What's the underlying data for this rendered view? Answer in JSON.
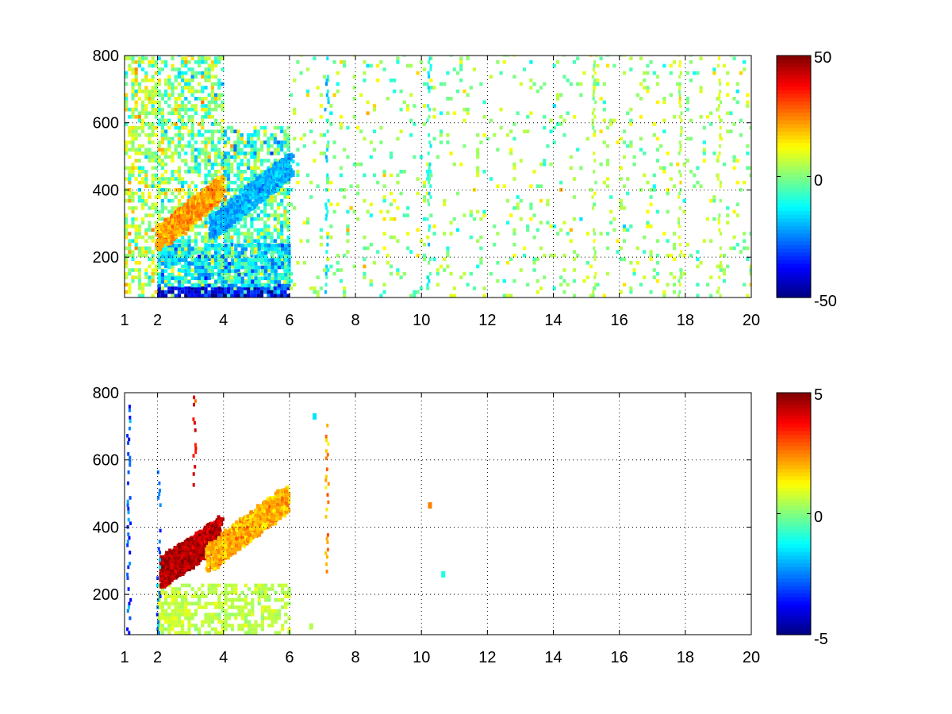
{
  "figure": {
    "background": "#ffffff",
    "colormap": "jet"
  },
  "chart_data": [
    {
      "type": "heatmap",
      "title": "",
      "xlabel": "",
      "ylabel": "",
      "xlim": [
        1,
        20
      ],
      "ylim": [
        80,
        800
      ],
      "grid": true,
      "xticks": [
        1,
        2,
        4,
        6,
        8,
        10,
        12,
        14,
        16,
        18,
        20
      ],
      "xtick_labels": [
        "1",
        "2",
        "4",
        "6",
        "8",
        "10",
        "12",
        "14",
        "16",
        "18",
        "20"
      ],
      "yticks": [
        200,
        400,
        600,
        800
      ],
      "ytick_labels": [
        "200",
        "400",
        "600",
        "800"
      ],
      "colorbar": {
        "range": [
          -50,
          50
        ],
        "tick_labels": [
          "50",
          "0",
          "-50"
        ],
        "tick_values": [
          50,
          0,
          -50
        ]
      },
      "data_description_regions": [
        {
          "x": [
            1.0,
            2.0
          ],
          "y": [
            80,
            800
          ],
          "fill": 0.55,
          "value": 5,
          "spread": 12
        },
        {
          "x": [
            2.0,
            4.0
          ],
          "y": [
            80,
            800
          ],
          "fill": 0.6,
          "value": 0,
          "spread": 14
        },
        {
          "x": [
            4.0,
            6.0
          ],
          "y": [
            80,
            580
          ],
          "fill": 0.65,
          "value": -5,
          "spread": 14
        },
        {
          "x": [
            2.0,
            4.0
          ],
          "y": [
            80,
            110
          ],
          "fill": 0.95,
          "value": -40,
          "spread": 10
        },
        {
          "x": [
            4.0,
            6.0
          ],
          "y": [
            80,
            110
          ],
          "fill": 0.9,
          "value": -35,
          "spread": 12
        },
        {
          "x": [
            2.0,
            6.0
          ],
          "y": [
            110,
            230
          ],
          "fill": 0.7,
          "value": -15,
          "spread": 12
        },
        {
          "x": [
            6.0,
            20.0
          ],
          "y": [
            80,
            800
          ],
          "fill": 0.09,
          "value": 2,
          "spread": 10
        }
      ],
      "data_description_ridges": [
        {
          "x_start": 2.0,
          "y_start": 250,
          "x_end": 3.9,
          "y_end": 400,
          "value": 22,
          "width": 35
        },
        {
          "x_start": 3.6,
          "y_start": 280,
          "x_end": 6.0,
          "y_end": 470,
          "value": -20,
          "width": 35
        }
      ],
      "data_description_columns": [
        {
          "x": 7.1,
          "value": -12
        },
        {
          "x": 10.2,
          "value": -10
        },
        {
          "x": 15.2,
          "value": 4
        },
        {
          "x": 17.8,
          "value": 6
        },
        {
          "x": 19.0,
          "value": 8
        }
      ]
    },
    {
      "type": "heatmap",
      "title": "",
      "xlabel": "",
      "ylabel": "",
      "xlim": [
        1,
        20
      ],
      "ylim": [
        80,
        800
      ],
      "grid": true,
      "xticks": [
        1,
        2,
        4,
        6,
        8,
        10,
        12,
        14,
        16,
        18,
        20
      ],
      "xtick_labels": [
        "1",
        "2",
        "4",
        "6",
        "8",
        "10",
        "12",
        "14",
        "16",
        "18",
        "20"
      ],
      "yticks": [
        200,
        400,
        600,
        800
      ],
      "ytick_labels": [
        "200",
        "400",
        "600",
        "800"
      ],
      "colorbar": {
        "range": [
          -5,
          5
        ],
        "tick_labels": [
          "5",
          "0",
          "-5"
        ],
        "tick_values": [
          5,
          0,
          -5
        ]
      },
      "data_description_regions": [
        {
          "x": [
            2.0,
            6.0
          ],
          "y": [
            80,
            230
          ],
          "fill": 0.55,
          "value": 0.6,
          "spread": 0.3
        },
        {
          "x": [
            2.0,
            3.0
          ],
          "y": [
            80,
            200
          ],
          "fill": 0.5,
          "value": 0.8,
          "spread": 0.3
        }
      ],
      "data_description_ridges": [
        {
          "x_start": 2.1,
          "y_start": 260,
          "x_end": 3.9,
          "y_end": 380,
          "value": 4.5,
          "width": 45
        },
        {
          "x_start": 3.5,
          "y_start": 300,
          "x_end": 5.9,
          "y_end": 480,
          "value": 2.0,
          "width": 40
        }
      ],
      "data_description_columns": [
        {
          "x": 1.1,
          "y": [
            80,
            760
          ],
          "value": -3
        },
        {
          "x": 2.0,
          "y": [
            80,
            560
          ],
          "value": -2.5
        },
        {
          "x": 3.1,
          "y": [
            520,
            800
          ],
          "value": 4
        },
        {
          "x": 7.1,
          "y": [
            230,
            700
          ],
          "value": 2
        }
      ],
      "data_description_points": [
        {
          "x": 10.2,
          "y": 455,
          "value": 2.5
        },
        {
          "x": 6.6,
          "y": 95,
          "value": 0.5
        },
        {
          "x": 6.7,
          "y": 720,
          "value": -1.5
        },
        {
          "x": 10.6,
          "y": 250,
          "value": -1
        }
      ]
    }
  ]
}
